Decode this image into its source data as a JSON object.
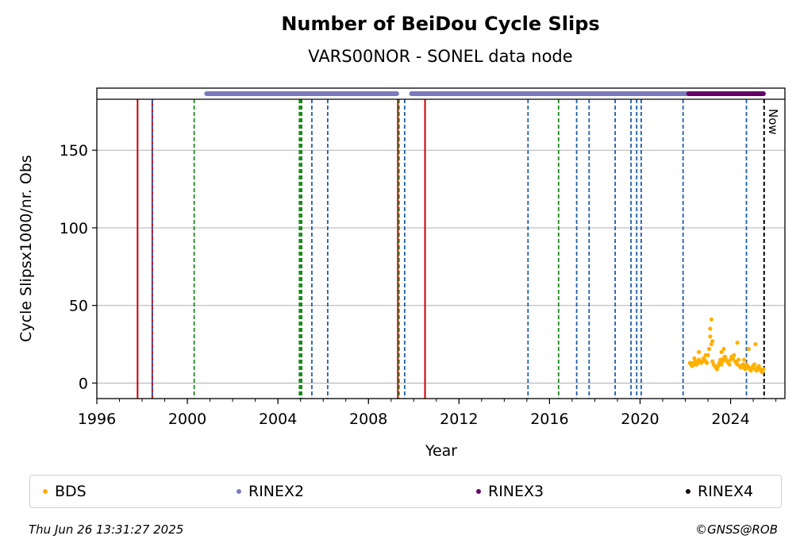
{
  "chart_data": {
    "type": "scatter",
    "title": "Number of BeiDou Cycle Slips",
    "subtitle": "VARS00NOR - SONEL data node",
    "xlabel": "Year",
    "ylabel": "Cycle Slipsx1000/nr. Obs",
    "xlim": [
      1996,
      2026.4
    ],
    "ylim": [
      -10,
      190
    ],
    "x_ticks": [
      1996,
      2000,
      2004,
      2008,
      2012,
      2016,
      2020,
      2024
    ],
    "y_ticks": [
      0,
      50,
      100,
      150
    ],
    "grid": "horizontal",
    "now_label": "Now",
    "now_year": 2025.48,
    "event_lines": {
      "red_solid": [
        1997.8,
        2009.3,
        2010.5
      ],
      "red_blue_dashed": [
        1998.45
      ],
      "green_dashed": [
        2000.3,
        2004.95,
        2005.0,
        2005.05,
        2009.35,
        2016.4
      ],
      "blue_dashed": [
        2005.5,
        2006.2,
        2009.6,
        2015.05,
        2017.2,
        2017.75,
        2018.9,
        2019.6,
        2019.85,
        2020.05,
        2021.9,
        2024.7
      ]
    },
    "rinex_bars": [
      {
        "name": "RINEX2",
        "color": "#7b7bbb",
        "ranges": [
          [
            2000.85,
            2009.25
          ],
          [
            2009.9,
            2022.2
          ]
        ]
      },
      {
        "name": "RINEX3",
        "color": "#660066",
        "ranges": [
          [
            2022.15,
            2025.45
          ]
        ]
      }
    ],
    "series": [
      {
        "name": "BDS",
        "color": "#ffb000",
        "x": [
          2022.2,
          2022.25,
          2022.3,
          2022.35,
          2022.4,
          2022.45,
          2022.5,
          2022.55,
          2022.6,
          2022.65,
          2022.7,
          2022.75,
          2022.8,
          2022.85,
          2022.9,
          2022.95,
          2023.0,
          2023.05,
          2023.1,
          2023.15,
          2023.2,
          2023.25,
          2023.3,
          2023.35,
          2023.4,
          2023.45,
          2023.5,
          2023.55,
          2023.6,
          2023.65,
          2023.7,
          2023.75,
          2023.8,
          2023.85,
          2023.9,
          2023.95,
          2024.0,
          2024.05,
          2024.1,
          2024.15,
          2024.2,
          2024.25,
          2024.3,
          2024.35,
          2024.4,
          2024.45,
          2024.5,
          2024.55,
          2024.6,
          2024.65,
          2024.7,
          2024.75,
          2024.8,
          2024.85,
          2024.9,
          2024.95,
          2025.0,
          2025.05,
          2025.1,
          2025.15,
          2025.2,
          2025.25,
          2025.3,
          2025.35,
          2025.4,
          2025.45,
          2022.6,
          2022.9,
          2023.1,
          2023.15,
          2023.2,
          2023.7,
          2024.3,
          2024.8,
          2024.6,
          2025.1,
          2023.6,
          2022.4
        ],
        "y": [
          13,
          12,
          11,
          13,
          12,
          14,
          12,
          13,
          15,
          14,
          13,
          14,
          16,
          15,
          14,
          13,
          18,
          22,
          30,
          25,
          14,
          12,
          11,
          10,
          9,
          11,
          13,
          15,
          12,
          14,
          16,
          17,
          15,
          14,
          13,
          12,
          15,
          17,
          16,
          18,
          14,
          13,
          12,
          15,
          11,
          10,
          11,
          12,
          10,
          9,
          12,
          11,
          10,
          9,
          8,
          10,
          11,
          12,
          9,
          8,
          10,
          11,
          9,
          8,
          7,
          9,
          20,
          18,
          35,
          41,
          27,
          22,
          26,
          22,
          15,
          25,
          20,
          16
        ]
      }
    ],
    "legend": [
      {
        "name": "BDS",
        "color": "#ffb000"
      },
      {
        "name": "RINEX2",
        "color": "#7b7bbb"
      },
      {
        "name": "RINEX3",
        "color": "#660066"
      },
      {
        "name": "RINEX4",
        "color": "#1a0010"
      }
    ]
  },
  "footer": {
    "timestamp": "Thu Jun 26 13:31:27 2025",
    "copyright": "©GNSS@ROB"
  }
}
